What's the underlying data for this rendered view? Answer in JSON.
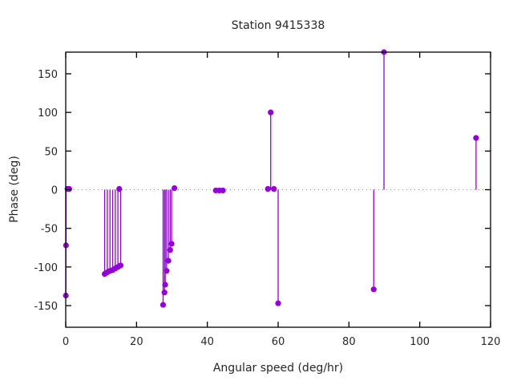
{
  "chart_data": {
    "type": "scatter",
    "style": "impulses+points",
    "title": "Station 9415338",
    "xlabel": "Angular speed (deg/hr)",
    "ylabel": "Phase (deg)",
    "xlim": [
      0,
      120
    ],
    "ylim": [
      -178,
      178
    ],
    "xticks": [
      0,
      20,
      40,
      60,
      80,
      100,
      120
    ],
    "yticks": [
      -150,
      -100,
      -50,
      0,
      50,
      100,
      150
    ],
    "grid": false,
    "legend": "none",
    "zero_line": "dotted",
    "series_color": "#9400d3",
    "border_color": "#000000",
    "zero_line_color": "#888888",
    "points": [
      {
        "x": 0.04,
        "y": -137
      },
      {
        "x": 0.08,
        "y": -72
      },
      {
        "x": 0.5,
        "y": 1
      },
      {
        "x": 1.0,
        "y": 1
      },
      {
        "x": 11.0,
        "y": -109
      },
      {
        "x": 11.75,
        "y": -107
      },
      {
        "x": 12.5,
        "y": -105
      },
      {
        "x": 13.25,
        "y": -104
      },
      {
        "x": 14.0,
        "y": -102
      },
      {
        "x": 14.75,
        "y": -100
      },
      {
        "x": 15.5,
        "y": -98
      },
      {
        "x": 15.1,
        "y": 1
      },
      {
        "x": 27.5,
        "y": -149
      },
      {
        "x": 27.9,
        "y": -133
      },
      {
        "x": 28.1,
        "y": -123
      },
      {
        "x": 28.5,
        "y": -105
      },
      {
        "x": 29.0,
        "y": -92
      },
      {
        "x": 29.5,
        "y": -78
      },
      {
        "x": 29.9,
        "y": -70
      },
      {
        "x": 30.7,
        "y": 2
      },
      {
        "x": 42.4,
        "y": -1
      },
      {
        "x": 43.4,
        "y": -1
      },
      {
        "x": 44.4,
        "y": -1
      },
      {
        "x": 57.1,
        "y": 1
      },
      {
        "x": 57.9,
        "y": 100
      },
      {
        "x": 58.8,
        "y": 1
      },
      {
        "x": 60.0,
        "y": -147
      },
      {
        "x": 87.0,
        "y": -129
      },
      {
        "x": 89.9,
        "y": 178
      },
      {
        "x": 115.9,
        "y": 67
      }
    ]
  }
}
